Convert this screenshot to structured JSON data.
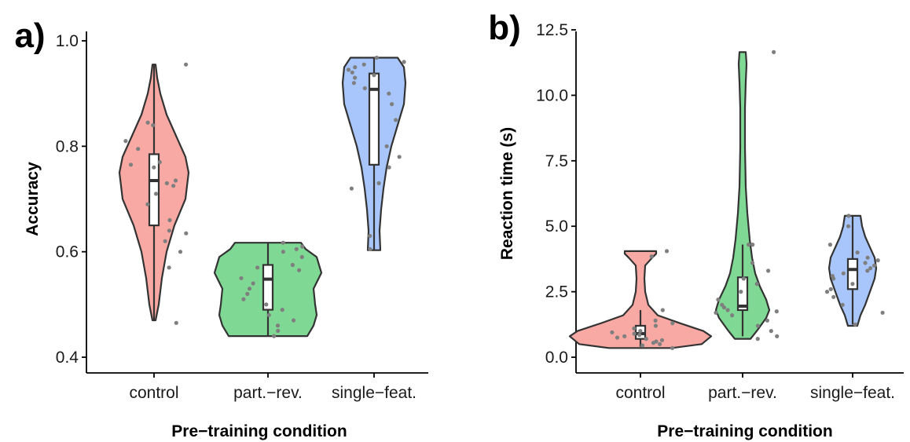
{
  "chart_data": [
    {
      "panel_label": "a)",
      "type": "violin",
      "xlabel": "Pre−training condition",
      "ylabel": "Accuracy",
      "ylim": [
        0.4,
        1.0
      ],
      "yticks": [
        0.4,
        0.6,
        0.8,
        1.0
      ],
      "ytick_labels": [
        "0.4",
        "0.6",
        "0.8",
        "1.0"
      ],
      "grid": false,
      "categories": [
        "control",
        "part.−rev.",
        "single−feat."
      ],
      "colors": [
        "#f8a9a4",
        "#7fd994",
        "#a8c6fb"
      ],
      "box": [
        {
          "min": 0.47,
          "q1": 0.65,
          "median": 0.735,
          "q3": 0.785,
          "max": 0.955
        },
        {
          "min": 0.44,
          "q1": 0.49,
          "median": 0.548,
          "q3": 0.575,
          "max": 0.617
        },
        {
          "min": 0.603,
          "q1": 0.765,
          "median": 0.908,
          "q3": 0.938,
          "max": 0.968
        }
      ],
      "violins": [
        {
          "range": [
            0.47,
            0.955
          ],
          "profile": [
            [
              0.47,
              2
            ],
            [
              0.5,
              6
            ],
            [
              0.55,
              10
            ],
            [
              0.6,
              16
            ],
            [
              0.65,
              26
            ],
            [
              0.7,
              40
            ],
            [
              0.75,
              44
            ],
            [
              0.78,
              40
            ],
            [
              0.82,
              28
            ],
            [
              0.86,
              16
            ],
            [
              0.9,
              8
            ],
            [
              0.93,
              4
            ],
            [
              0.955,
              2
            ]
          ]
        },
        {
          "range": [
            0.44,
            0.617
          ],
          "profile": [
            [
              0.44,
              50
            ],
            [
              0.46,
              58
            ],
            [
              0.48,
              62
            ],
            [
              0.5,
              60
            ],
            [
              0.53,
              58
            ],
            [
              0.56,
              68
            ],
            [
              0.59,
              62
            ],
            [
              0.605,
              48
            ],
            [
              0.617,
              42
            ]
          ]
        },
        {
          "range": [
            0.603,
            0.968
          ],
          "profile": [
            [
              0.603,
              8
            ],
            [
              0.64,
              7
            ],
            [
              0.68,
              9
            ],
            [
              0.72,
              12
            ],
            [
              0.76,
              16
            ],
            [
              0.8,
              22
            ],
            [
              0.84,
              30
            ],
            [
              0.88,
              38
            ],
            [
              0.92,
              40
            ],
            [
              0.95,
              38
            ],
            [
              0.968,
              30
            ]
          ]
        }
      ],
      "points": [
        [
          0.955,
          0.71,
          0.725,
          0.73,
          0.66,
          0.735,
          0.77,
          0.765,
          0.795,
          0.84,
          0.845,
          0.81,
          0.76,
          0.69,
          0.64,
          0.635,
          0.57,
          0.465,
          0.62,
          0.6
        ],
        [
          0.617,
          0.61,
          0.605,
          0.6,
          0.575,
          0.57,
          0.55,
          0.54,
          0.53,
          0.52,
          0.51,
          0.5,
          0.49,
          0.48,
          0.47,
          0.46,
          0.45,
          0.44,
          0.565,
          0.59
        ],
        [
          0.968,
          0.96,
          0.955,
          0.95,
          0.945,
          0.94,
          0.935,
          0.93,
          0.92,
          0.91,
          0.9,
          0.88,
          0.85,
          0.8,
          0.78,
          0.76,
          0.73,
          0.72,
          0.63,
          0.605
        ]
      ]
    },
    {
      "panel_label": "b)",
      "type": "violin",
      "xlabel": "Pre−training condition",
      "ylabel": "Reaction time (s)",
      "ylim": [
        0.0,
        12.5
      ],
      "yticks": [
        0.0,
        2.5,
        5.0,
        7.5,
        10.0,
        12.5
      ],
      "ytick_labels": [
        "0.0",
        "2.5",
        "5.0",
        "7.5",
        "10.0",
        "12.5"
      ],
      "grid": false,
      "categories": [
        "control",
        "part.−rev.",
        "single−feat."
      ],
      "colors": [
        "#f8a9a4",
        "#7fd994",
        "#a8c6fb"
      ],
      "box": [
        {
          "min": 0.4,
          "q1": 0.7,
          "median": 0.9,
          "q3": 1.2,
          "max": 1.8
        },
        {
          "min": 0.8,
          "q1": 1.8,
          "median": 1.95,
          "q3": 3.05,
          "max": 4.3
        },
        {
          "min": 1.25,
          "q1": 2.6,
          "median": 3.35,
          "q3": 3.75,
          "max": 5.4
        }
      ],
      "violins": [
        {
          "range": [
            0.35,
            4.05
          ],
          "profile": [
            [
              0.35,
              40
            ],
            [
              0.5,
              78
            ],
            [
              0.8,
              90
            ],
            [
              1.0,
              80
            ],
            [
              1.3,
              50
            ],
            [
              1.6,
              22
            ],
            [
              2.0,
              10
            ],
            [
              2.5,
              6
            ],
            [
              3.0,
              5
            ],
            [
              3.5,
              6
            ],
            [
              3.8,
              15
            ],
            [
              3.95,
              20
            ],
            [
              4.05,
              20
            ]
          ]
        },
        {
          "range": [
            0.7,
            11.65
          ],
          "profile": [
            [
              0.7,
              10
            ],
            [
              1.0,
              18
            ],
            [
              1.5,
              30
            ],
            [
              1.8,
              34
            ],
            [
              2.2,
              30
            ],
            [
              2.7,
              22
            ],
            [
              3.2,
              16
            ],
            [
              3.8,
              12
            ],
            [
              4.5,
              9
            ],
            [
              5.5,
              6
            ],
            [
              6.5,
              4
            ],
            [
              8.0,
              3
            ],
            [
              9.5,
              3
            ],
            [
              10.5,
              4
            ],
            [
              11.2,
              5
            ],
            [
              11.65,
              4
            ]
          ]
        },
        {
          "range": [
            1.2,
            5.4
          ],
          "profile": [
            [
              1.2,
              6
            ],
            [
              1.6,
              10
            ],
            [
              2.0,
              16
            ],
            [
              2.5,
              22
            ],
            [
              3.0,
              28
            ],
            [
              3.4,
              30
            ],
            [
              3.8,
              28
            ],
            [
              4.2,
              22
            ],
            [
              4.6,
              16
            ],
            [
              5.0,
              12
            ],
            [
              5.4,
              10
            ]
          ]
        }
      ],
      "points": [
        [
          0.35,
          0.45,
          0.5,
          0.55,
          0.6,
          0.65,
          0.7,
          0.75,
          0.8,
          0.85,
          0.9,
          0.95,
          1.0,
          1.1,
          1.2,
          1.3,
          1.4,
          1.8,
          3.85,
          4.05
        ],
        [
          0.7,
          0.8,
          1.0,
          1.2,
          1.4,
          1.6,
          1.7,
          1.8,
          1.9,
          2.0,
          2.2,
          2.5,
          2.8,
          3.0,
          3.3,
          3.6,
          4.3,
          4.3,
          11.65,
          1.75
        ],
        [
          1.25,
          1.7,
          2.0,
          2.3,
          2.5,
          2.6,
          2.8,
          3.0,
          3.1,
          3.2,
          3.3,
          3.4,
          3.5,
          3.6,
          3.7,
          3.8,
          4.0,
          4.3,
          5.0,
          5.4
        ]
      ]
    }
  ]
}
